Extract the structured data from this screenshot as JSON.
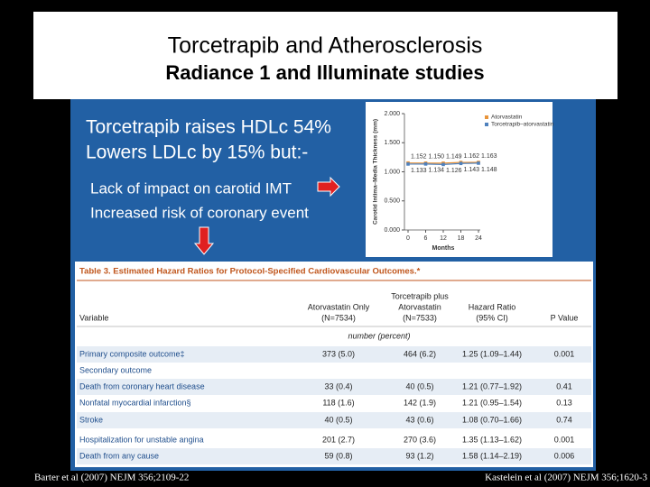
{
  "header": {
    "title": "Torcetrapib and Atherosclerosis",
    "subtitle": "Radiance 1 and Illuminate studies"
  },
  "bullets": [
    "Torcetrapib raises HDLc 54%",
    "Lowers LDLc by 15% but:-"
  ],
  "points": [
    "Lack of impact on carotid IMT",
    "Increased risk of coronary event"
  ],
  "chart_data": {
    "type": "line",
    "ylabel": "Carotid Intima–Media Thickness (mm)",
    "xlabel": "Months",
    "x": [
      0,
      6,
      12,
      18,
      24
    ],
    "xlim": [
      0,
      24
    ],
    "xticks": [
      0,
      6,
      12,
      18,
      24
    ],
    "ylim": [
      0,
      2
    ],
    "yticks": [
      {
        "value": 0,
        "label": "0.000"
      },
      {
        "value": 0.5,
        "label": "0.500"
      },
      {
        "value": 1,
        "label": "1.000"
      },
      {
        "value": 1.5,
        "label": "1.500"
      },
      {
        "value": 2,
        "label": "2.000"
      }
    ],
    "legend": "upper right",
    "series": [
      {
        "name": "Atorvastatin",
        "color": "#e8943a",
        "values": [
          1.152,
          1.15,
          1.149,
          1.162,
          1.163
        ],
        "value_labels": [
          "1.152",
          "1.150",
          "1.149",
          "1.162",
          "1.163"
        ]
      },
      {
        "name": "Torcetrapib–atorvastatin",
        "color": "#4f81bd",
        "values": [
          1.133,
          1.134,
          1.126,
          1.143,
          1.148
        ],
        "value_labels": [
          "1.133",
          "1.134",
          "1.126",
          "1.143",
          "1.148"
        ]
      }
    ]
  },
  "table": {
    "title": "Table 3. Estimated Hazard Ratios for Protocol-Specified Cardiovascular Outcomes.*",
    "group_header": "Torcetrapib plus",
    "columns": [
      [
        "Variable"
      ],
      [
        "Atorvastatin Only",
        "(N=7534)"
      ],
      [
        "Atorvastatin",
        "(N=7533)"
      ],
      [
        "Hazard Ratio",
        "(95% CI)"
      ],
      [
        "P Value"
      ]
    ],
    "units": "number (percent)",
    "rows": [
      [
        "Primary composite outcome‡",
        "373 (5.0)",
        "464 (6.2)",
        "1.25 (1.09–1.44)",
        "0.001"
      ],
      [
        "Secondary outcome",
        "",
        "",
        "",
        ""
      ],
      [
        "Death from coronary heart disease",
        "33 (0.4)",
        "40 (0.5)",
        "1.21 (0.77–1.92)",
        "0.41"
      ],
      [
        "Nonfatal myocardial infarction§",
        "118 (1.6)",
        "142 (1.9)",
        "1.21 (0.95–1.54)",
        "0.13"
      ],
      [
        "Stroke",
        "40 (0.5)",
        "43 (0.6)",
        "1.08 (0.70–1.66)",
        "0.74"
      ],
      [
        "Hospitalization for unstable angina",
        "201 (2.7)",
        "270 (3.6)",
        "1.35 (1.13–1.62)",
        "0.001"
      ],
      [
        "Death from any cause",
        "59 (0.8)",
        "93 (1.2)",
        "1.58 (1.14–2.19)",
        "0.006"
      ]
    ]
  },
  "footer": {
    "left": "Barter et al (2007) NEJM 356;2109-22",
    "right": "Kastelein et al (2007) NEJM 356;1620-3"
  }
}
